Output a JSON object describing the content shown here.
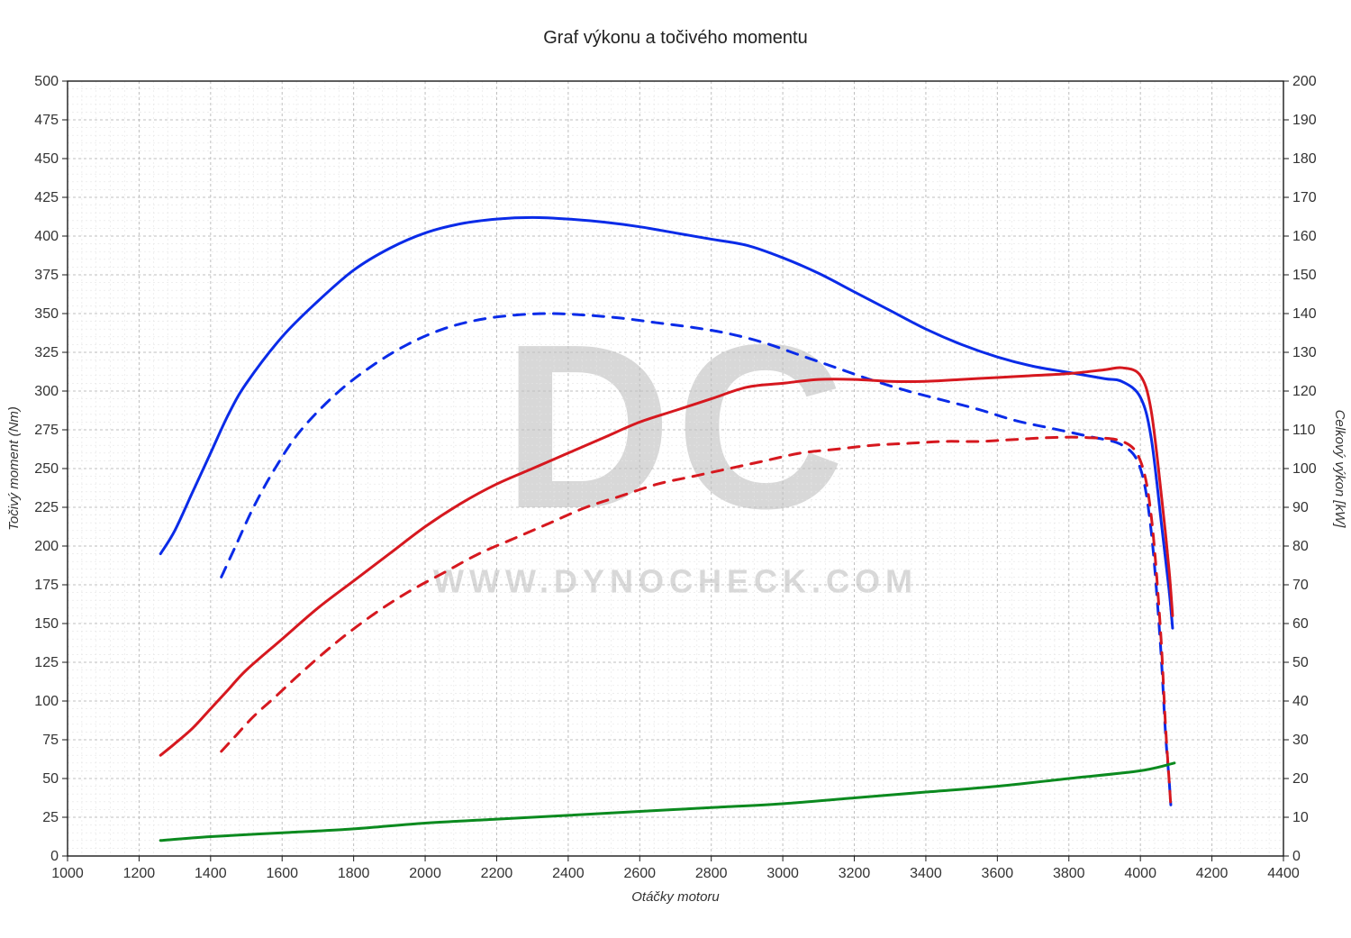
{
  "chart": {
    "type": "line",
    "title": "Graf výkonu a točivého momentu",
    "title_fontsize": 20,
    "title_color": "#222222",
    "background_color": "#ffffff",
    "plot_border_color": "#1a1a1a",
    "grid_major_color": "#bfbfbf",
    "grid_minor_color": "#e5e5e5",
    "grid_major_dash": "3,3",
    "grid_minor_dash": "2,3",
    "x": {
      "label": "Otáčky motoru",
      "label_fontsize": 15,
      "min": 1000,
      "max": 4400,
      "major_step": 200,
      "minor_step": 40
    },
    "y_left": {
      "label": "Točivý moment (Nm)",
      "label_fontsize": 15,
      "min": 0,
      "max": 500,
      "major_step": 25,
      "minor_step": 5
    },
    "y_right": {
      "label": "Celkový výkon [kW]",
      "label_fontsize": 15,
      "min": 0,
      "max": 200,
      "major_step": 10,
      "minor_step": 2
    },
    "watermark": {
      "big_text": "DC",
      "big_fontsize": 260,
      "small_text": "WWW.DYNOCHECK.COM",
      "small_fontsize": 36,
      "color": "#d8d8d8"
    },
    "series": [
      {
        "name": "torque_tuned",
        "axis": "left",
        "color": "#0a2be8",
        "width": 3,
        "dash": null,
        "points": [
          [
            1260,
            195
          ],
          [
            1300,
            210
          ],
          [
            1350,
            235
          ],
          [
            1400,
            260
          ],
          [
            1450,
            285
          ],
          [
            1500,
            305
          ],
          [
            1600,
            335
          ],
          [
            1700,
            358
          ],
          [
            1800,
            378
          ],
          [
            1900,
            392
          ],
          [
            2000,
            402
          ],
          [
            2100,
            408
          ],
          [
            2200,
            411
          ],
          [
            2300,
            412
          ],
          [
            2400,
            411
          ],
          [
            2500,
            409
          ],
          [
            2600,
            406
          ],
          [
            2700,
            402
          ],
          [
            2800,
            398
          ],
          [
            2900,
            394
          ],
          [
            3000,
            386
          ],
          [
            3100,
            376
          ],
          [
            3200,
            364
          ],
          [
            3300,
            352
          ],
          [
            3400,
            340
          ],
          [
            3500,
            330
          ],
          [
            3600,
            322
          ],
          [
            3700,
            316
          ],
          [
            3800,
            312
          ],
          [
            3900,
            308
          ],
          [
            3950,
            306
          ],
          [
            4000,
            296
          ],
          [
            4030,
            270
          ],
          [
            4060,
            212
          ],
          [
            4080,
            172
          ],
          [
            4090,
            147
          ]
        ]
      },
      {
        "name": "torque_stock",
        "axis": "left",
        "color": "#0a2be8",
        "width": 3,
        "dash": "12,10",
        "points": [
          [
            1430,
            180
          ],
          [
            1470,
            200
          ],
          [
            1520,
            225
          ],
          [
            1580,
            250
          ],
          [
            1650,
            274
          ],
          [
            1750,
            298
          ],
          [
            1850,
            316
          ],
          [
            1950,
            330
          ],
          [
            2050,
            340
          ],
          [
            2150,
            346
          ],
          [
            2250,
            349
          ],
          [
            2350,
            350
          ],
          [
            2450,
            349
          ],
          [
            2550,
            347
          ],
          [
            2650,
            344
          ],
          [
            2750,
            341
          ],
          [
            2850,
            337
          ],
          [
            2950,
            331
          ],
          [
            3050,
            323
          ],
          [
            3150,
            315
          ],
          [
            3250,
            307
          ],
          [
            3350,
            300
          ],
          [
            3450,
            294
          ],
          [
            3550,
            288
          ],
          [
            3650,
            281
          ],
          [
            3750,
            276
          ],
          [
            3850,
            271
          ],
          [
            3950,
            265
          ],
          [
            4000,
            250
          ],
          [
            4030,
            210
          ],
          [
            4055,
            140
          ],
          [
            4070,
            80
          ],
          [
            4080,
            50
          ],
          [
            4085,
            33
          ]
        ]
      },
      {
        "name": "power_tuned",
        "axis": "right",
        "color": "#d6181f",
        "width": 3,
        "dash": null,
        "points": [
          [
            1260,
            26
          ],
          [
            1300,
            29
          ],
          [
            1350,
            33
          ],
          [
            1400,
            38
          ],
          [
            1450,
            43
          ],
          [
            1500,
            48
          ],
          [
            1600,
            56
          ],
          [
            1700,
            64
          ],
          [
            1800,
            71
          ],
          [
            1900,
            78
          ],
          [
            2000,
            85
          ],
          [
            2100,
            91
          ],
          [
            2200,
            96
          ],
          [
            2300,
            100
          ],
          [
            2400,
            104
          ],
          [
            2500,
            108
          ],
          [
            2600,
            112
          ],
          [
            2700,
            115
          ],
          [
            2800,
            118
          ],
          [
            2900,
            121
          ],
          [
            3000,
            122
          ],
          [
            3100,
            123
          ],
          [
            3200,
            123
          ],
          [
            3300,
            122.5
          ],
          [
            3400,
            122.5
          ],
          [
            3500,
            123
          ],
          [
            3600,
            123.5
          ],
          [
            3700,
            124
          ],
          [
            3800,
            124.5
          ],
          [
            3900,
            125.5
          ],
          [
            3950,
            126
          ],
          [
            4000,
            124
          ],
          [
            4030,
            115
          ],
          [
            4060,
            92
          ],
          [
            4080,
            74
          ],
          [
            4090,
            62
          ]
        ]
      },
      {
        "name": "power_stock",
        "axis": "right",
        "color": "#d6181f",
        "width": 3,
        "dash": "12,10",
        "points": [
          [
            1430,
            27
          ],
          [
            1470,
            31
          ],
          [
            1520,
            36
          ],
          [
            1580,
            41
          ],
          [
            1650,
            47
          ],
          [
            1750,
            55
          ],
          [
            1850,
            62
          ],
          [
            1950,
            68
          ],
          [
            2050,
            73
          ],
          [
            2150,
            78
          ],
          [
            2250,
            82
          ],
          [
            2350,
            86
          ],
          [
            2450,
            90
          ],
          [
            2550,
            93
          ],
          [
            2650,
            96
          ],
          [
            2750,
            98
          ],
          [
            2850,
            100
          ],
          [
            2950,
            102
          ],
          [
            3050,
            104
          ],
          [
            3150,
            105
          ],
          [
            3250,
            106
          ],
          [
            3350,
            106.5
          ],
          [
            3450,
            107
          ],
          [
            3550,
            107
          ],
          [
            3650,
            107.5
          ],
          [
            3750,
            108
          ],
          [
            3850,
            108
          ],
          [
            3950,
            107
          ],
          [
            4000,
            102
          ],
          [
            4030,
            88
          ],
          [
            4055,
            60
          ],
          [
            4070,
            34
          ],
          [
            4080,
            20
          ],
          [
            4085,
            13
          ]
        ]
      },
      {
        "name": "drag_losses",
        "axis": "right",
        "color": "#0b8a1f",
        "width": 3,
        "dash": null,
        "points": [
          [
            1260,
            4
          ],
          [
            1400,
            5
          ],
          [
            1600,
            6
          ],
          [
            1800,
            7
          ],
          [
            2000,
            8.5
          ],
          [
            2200,
            9.5
          ],
          [
            2400,
            10.5
          ],
          [
            2600,
            11.5
          ],
          [
            2800,
            12.5
          ],
          [
            3000,
            13.5
          ],
          [
            3200,
            15
          ],
          [
            3400,
            16.5
          ],
          [
            3600,
            18
          ],
          [
            3800,
            20
          ],
          [
            4000,
            22
          ],
          [
            4095,
            24
          ]
        ]
      }
    ]
  }
}
